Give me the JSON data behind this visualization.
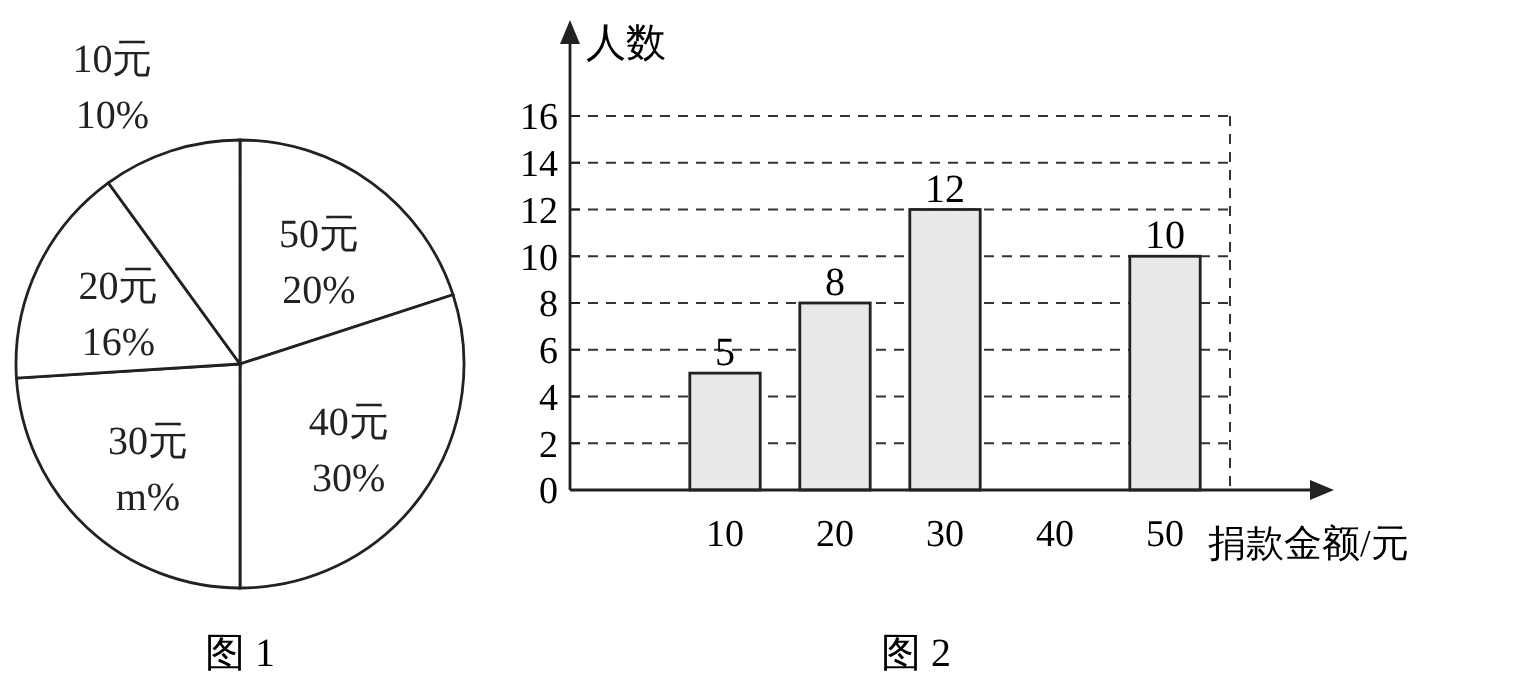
{
  "chart_data": [
    {
      "type": "pie",
      "title": "图 1",
      "categories": [
        "50元",
        "40元",
        "30元",
        "20元",
        "10元"
      ],
      "values": [
        20,
        30,
        24,
        16,
        10
      ],
      "value_labels": [
        "20%",
        "30%",
        "m%",
        "16%",
        "10%"
      ],
      "colors": [
        "#ffffff",
        "#ffffff",
        "#ffffff",
        "#ffffff",
        "#ffffff"
      ]
    },
    {
      "type": "bar",
      "title": "图 2",
      "categories": [
        "10",
        "20",
        "30",
        "40",
        "50"
      ],
      "values": [
        5,
        8,
        12,
        null,
        10
      ],
      "color": "#e8e8ea",
      "xlabel": "捐款金额/元",
      "ylabel": "人数",
      "ylim": [
        0,
        16
      ],
      "yticks": [
        0,
        2,
        4,
        6,
        8,
        10,
        12,
        14,
        16
      ],
      "grid": "y",
      "data_labels": true
    }
  ]
}
